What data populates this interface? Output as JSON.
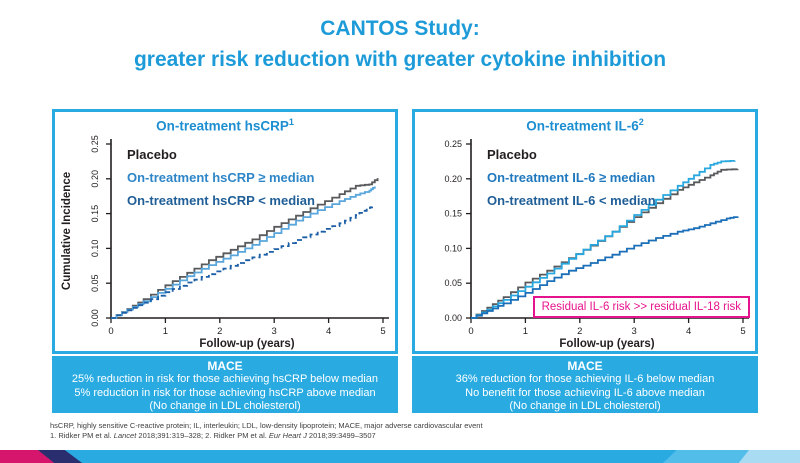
{
  "slide_title": {
    "line1": "CANTOS Study:",
    "line2": "greater risk reduction with greater cytokine inhibition"
  },
  "colors": {
    "accent_cyan": "#29ABE2",
    "title_blue": "#1D9BD8",
    "annotation_magenta": "#E6148C",
    "bar_magenta": "#D6156C",
    "bar_navy": "#2B2E6E",
    "bar_light_blue": "#53BDE9",
    "bar_lightest_blue": "#A9DCF3",
    "banner_text": "#FFFFFF",
    "axis_black": "#231F20"
  },
  "chart_data": [
    {
      "type": "line",
      "panel_title": "On-treatment hsCRP",
      "panel_title_sup": "1",
      "xlabel": "Follow-up (years)",
      "ylabel": "Cumulative Incidence",
      "xlim": [
        0,
        5
      ],
      "ylim": [
        0,
        0.25
      ],
      "xticks": [
        "0",
        "1",
        "2",
        "3",
        "4",
        "5"
      ],
      "yticks": [
        "0.00",
        "0.05",
        "0.10",
        "0.15",
        "0.20",
        "0.25"
      ],
      "ytick_orientation": "rotated",
      "legend_position": "top-left",
      "grid": false,
      "series": [
        {
          "name": "Placebo",
          "color": "#595A5C",
          "text_color": "#231F20",
          "dash": "solid",
          "points": [
            [
              0,
              0
            ],
            [
              0.3,
              0.013
            ],
            [
              0.6,
              0.027
            ],
            [
              1,
              0.047
            ],
            [
              1.4,
              0.065
            ],
            [
              1.8,
              0.083
            ],
            [
              2.2,
              0.098
            ],
            [
              2.6,
              0.113
            ],
            [
              3,
              0.131
            ],
            [
              3.4,
              0.147
            ],
            [
              3.8,
              0.163
            ],
            [
              4.2,
              0.178
            ],
            [
              4.5,
              0.19
            ],
            [
              4.75,
              0.192
            ],
            [
              4.9,
              0.201
            ]
          ]
        },
        {
          "name": "On-treatment hsCRP ≥ median",
          "color": "#58A6DC",
          "text_color": "#2E86C8",
          "dash": "solid",
          "points": [
            [
              0,
              0
            ],
            [
              0.3,
              0.012
            ],
            [
              0.6,
              0.024
            ],
            [
              1,
              0.042
            ],
            [
              1.4,
              0.06
            ],
            [
              1.8,
              0.076
            ],
            [
              2.2,
              0.09
            ],
            [
              2.6,
              0.105
            ],
            [
              3,
              0.122
            ],
            [
              3.4,
              0.14
            ],
            [
              3.8,
              0.155
            ],
            [
              4.2,
              0.168
            ],
            [
              4.5,
              0.177
            ],
            [
              4.75,
              0.183
            ],
            [
              4.85,
              0.189
            ]
          ]
        },
        {
          "name": "On-treatment hsCRP < median",
          "color": "#1C5FA6",
          "text_color": "#1F5E96",
          "dash": "dashed",
          "points": [
            [
              0,
              0
            ],
            [
              0.3,
              0.011
            ],
            [
              0.6,
              0.022
            ],
            [
              1,
              0.037
            ],
            [
              1.4,
              0.051
            ],
            [
              1.8,
              0.063
            ],
            [
              2.2,
              0.075
            ],
            [
              2.6,
              0.087
            ],
            [
              3,
              0.099
            ],
            [
              3.4,
              0.112
            ],
            [
              3.8,
              0.124
            ],
            [
              4.2,
              0.136
            ],
            [
              4.5,
              0.148
            ],
            [
              4.7,
              0.157
            ],
            [
              4.8,
              0.16
            ]
          ]
        }
      ],
      "banner": {
        "title": "MACE",
        "lines": [
          "25% reduction in risk for those achieving hsCRP below median",
          "5% reduction in risk for those achieving hsCRP above median",
          "(No change in LDL cholesterol)"
        ]
      }
    },
    {
      "type": "line",
      "panel_title": "On-treatment IL-6",
      "panel_title_sup": "2",
      "xlabel": "Follow-up (years)",
      "ylabel": "",
      "xlim": [
        0,
        5
      ],
      "ylim": [
        0,
        0.25
      ],
      "xticks": [
        "0",
        "1",
        "2",
        "3",
        "4",
        "5"
      ],
      "yticks": [
        "0.00",
        "0.05",
        "0.10",
        "0.15",
        "0.20",
        "0.25"
      ],
      "ytick_orientation": "horizontal",
      "legend_position": "top-left",
      "grid": false,
      "annotation": "Residual IL-6 risk >> residual IL-18 risk",
      "series": [
        {
          "name": "Placebo",
          "color": "#595A5C",
          "text_color": "#231F20",
          "dash": "solid",
          "points": [
            [
              0,
              0
            ],
            [
              0.3,
              0.015
            ],
            [
              0.6,
              0.03
            ],
            [
              1,
              0.051
            ],
            [
              1.4,
              0.068
            ],
            [
              1.8,
              0.086
            ],
            [
              2.2,
              0.104
            ],
            [
              2.6,
              0.124
            ],
            [
              3,
              0.145
            ],
            [
              3.4,
              0.165
            ],
            [
              3.8,
              0.184
            ],
            [
              4.1,
              0.195
            ],
            [
              4.4,
              0.205
            ],
            [
              4.6,
              0.213
            ],
            [
              4.9,
              0.214
            ]
          ]
        },
        {
          "name": "On-treatment IL-6 ≥ median",
          "color": "#29A8DF",
          "text_color": "#1F78BE",
          "dash": "solid",
          "points": [
            [
              0,
              0
            ],
            [
              0.3,
              0.012
            ],
            [
              0.6,
              0.026
            ],
            [
              1,
              0.045
            ],
            [
              1.4,
              0.064
            ],
            [
              1.8,
              0.085
            ],
            [
              2.2,
              0.105
            ],
            [
              2.6,
              0.124
            ],
            [
              3,
              0.148
            ],
            [
              3.4,
              0.17
            ],
            [
              3.8,
              0.19
            ],
            [
              4.1,
              0.205
            ],
            [
              4.4,
              0.22
            ],
            [
              4.6,
              0.225
            ],
            [
              4.85,
              0.226
            ]
          ]
        },
        {
          "name": "On-treatment IL-6 < median",
          "color": "#1B6FB8",
          "text_color": "#1F5E96",
          "dash": "solid",
          "points": [
            [
              0,
              0
            ],
            [
              0.3,
              0.01
            ],
            [
              0.6,
              0.021
            ],
            [
              1,
              0.036
            ],
            [
              1.4,
              0.053
            ],
            [
              1.8,
              0.068
            ],
            [
              2.2,
              0.079
            ],
            [
              2.6,
              0.091
            ],
            [
              3,
              0.104
            ],
            [
              3.4,
              0.115
            ],
            [
              3.8,
              0.124
            ],
            [
              4.1,
              0.129
            ],
            [
              4.4,
              0.136
            ],
            [
              4.7,
              0.143
            ],
            [
              4.9,
              0.146
            ]
          ]
        }
      ],
      "banner": {
        "title": "MACE",
        "lines": [
          "36% reduction for those achieving IL-6 below median",
          "No benefit for those achieving IL-6 above median",
          "(No change in LDL cholesterol)"
        ]
      }
    }
  ],
  "footnote": {
    "abbreviations": "hsCRP, highly sensitive C-reactive protein; IL, interleukin; LDL, low-density lipoprotein; MACE, major adverse cardiovascular event",
    "ref_pre1": "1. Ridker PM et al. ",
    "ref_journal1": "Lancet",
    "ref_mid": " 2018;391:319–328; 2. Ridker PM et al. ",
    "ref_journal2": "Eur Heart J",
    "ref_post": " 2018;39:3499–3507"
  }
}
